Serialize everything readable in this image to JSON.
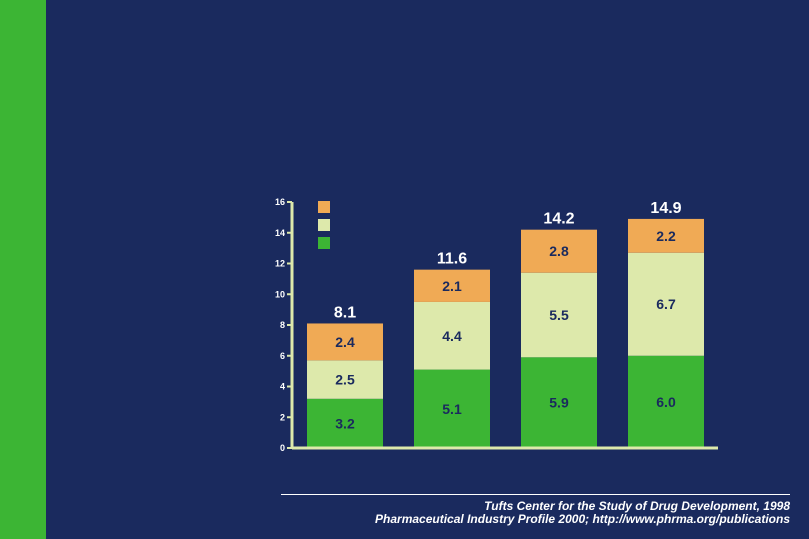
{
  "chart_data": {
    "type": "bar",
    "stacked": true,
    "categories": [
      "",
      "",
      "",
      ""
    ],
    "series": [
      {
        "name": "",
        "color": "#3cb534",
        "values": [
          3.2,
          5.1,
          5.9,
          6.0
        ],
        "labels": [
          "3.2",
          "5.1",
          "5.9",
          "6.0"
        ]
      },
      {
        "name": "",
        "color": "#dde9ab",
        "values": [
          2.5,
          4.4,
          5.5,
          6.7
        ],
        "labels": [
          "2.5",
          "4.4",
          "5.5",
          "6.7"
        ]
      },
      {
        "name": "",
        "color": "#f0aa55",
        "values": [
          2.4,
          2.1,
          2.8,
          2.2
        ],
        "labels": [
          "2.4",
          "2.1",
          "2.8",
          "2.2"
        ]
      }
    ],
    "totals": [
      8.1,
      11.6,
      14.2,
      14.9
    ],
    "total_labels": [
      "8.1",
      "11.6",
      "14.2",
      "14.9"
    ],
    "ylim": [
      0,
      16
    ],
    "yticks": [
      0,
      2,
      4,
      6,
      8,
      10,
      12,
      14,
      16
    ],
    "ytick_labels": [
      "0",
      "2",
      "4",
      "6",
      "8",
      "10",
      "12",
      "14",
      "16"
    ],
    "axis_color": "#dde9ab",
    "title": "",
    "xlabel": "",
    "ylabel": "",
    "legend_position": "top-left"
  },
  "source": {
    "line1": "Tufts Center for the Study of Drug Development, 1998",
    "line2": "Pharmaceutical Industry Profile 2000; http://www.phrma.org/publications"
  }
}
